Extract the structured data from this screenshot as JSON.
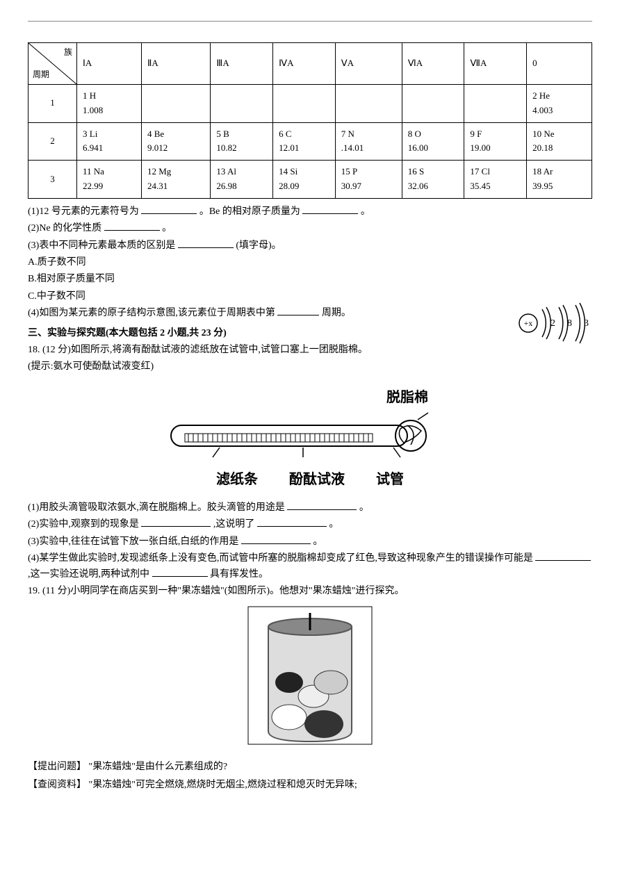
{
  "periodic": {
    "corner_top": "族",
    "corner_bottom": "周期",
    "groups": [
      "ⅠA",
      "ⅡA",
      "ⅢA",
      "ⅣA",
      "ⅤA",
      "ⅥA",
      "ⅦA",
      "0"
    ],
    "rows": [
      {
        "period": "1",
        "cells": [
          {
            "num": "1",
            "sym": "H",
            "mass": "1.008"
          },
          null,
          null,
          null,
          null,
          null,
          null,
          {
            "num": "2",
            "sym": "He",
            "mass": "4.003"
          }
        ]
      },
      {
        "period": "2",
        "cells": [
          {
            "num": "3",
            "sym": "Li",
            "mass": "6.941"
          },
          {
            "num": "4",
            "sym": "Be",
            "mass": "9.012"
          },
          {
            "num": "5",
            "sym": "B",
            "mass": "10.82"
          },
          {
            "num": "6",
            "sym": "C",
            "mass": "12.01"
          },
          {
            "num": "7",
            "sym": "N",
            "mass": ".14.01"
          },
          {
            "num": "8",
            "sym": "O",
            "mass": "16.00"
          },
          {
            "num": "9",
            "sym": "F",
            "mass": "19.00"
          },
          {
            "num": "10",
            "sym": "Ne",
            "mass": "20.18"
          }
        ]
      },
      {
        "period": "3",
        "cells": [
          {
            "num": "11",
            "sym": "Na",
            "mass": "22.99"
          },
          {
            "num": "12",
            "sym": "Mg",
            "mass": "24.31"
          },
          {
            "num": "13",
            "sym": "Al",
            "mass": "26.98"
          },
          {
            "num": "14",
            "sym": "Si",
            "mass": "28.09"
          },
          {
            "num": "15",
            "sym": "P",
            "mass": "30.97"
          },
          {
            "num": "16",
            "sym": "S",
            "mass": "32.06"
          },
          {
            "num": "17",
            "sym": "Cl",
            "mass": "35.45"
          },
          {
            "num": "18",
            "sym": "Ar",
            "mass": "39.95"
          }
        ]
      }
    ]
  },
  "q1": {
    "pre": "(1)12 号元素的元素符号为",
    "mid": "。Be 的相对原子质量为",
    "end": "。"
  },
  "q2": {
    "pre": "(2)Ne 的化学性质",
    "end": "。"
  },
  "q3": {
    "pre": "(3)表中不同种元素最本质的区别是",
    "post": "(填字母)。",
    "optA": "A.质子数不同",
    "optB": "B.相对原子质量不同",
    "optC": "C.中子数不同"
  },
  "q4": {
    "pre": "(4)如图为某元素的原子结构示意图,该元素位于周期表中第",
    "end": "周期。"
  },
  "section3": "三、实验与探究题(本大题包括 2 小题,共 23 分)",
  "q18": {
    "intro": "18. (12 分)如图所示,将滴有酚酞试液的滤纸放在试管中,试管口塞上一团脱脂棉。",
    "hint": "(提示:氨水可使酚酞试液变红)",
    "fig_top": "脱脂棉",
    "fig_b1": "滤纸条",
    "fig_b2": "酚酞试液",
    "fig_b3": "试管",
    "p1_pre": "(1)用胶头滴管吸取浓氨水,滴在脱脂棉上。胶头滴管的用途是",
    "p1_end": "。",
    "p2_pre": "(2)实验中,观察到的现象是",
    "p2_mid": ",这说明了",
    "p2_end": "。",
    "p3_pre": "(3)实验中,往往在试管下放一张白纸,白纸的作用是",
    "p3_end": "。",
    "p4_pre": "(4)某学生做此实验时,发现滤纸条上没有变色,而试管中所塞的脱脂棉却变成了红色,导致这种现象产生的错误操作可能是",
    "p4_mid": ",这一实验还说明,两种试剂中",
    "p4_end": "具有挥发性。"
  },
  "q19": {
    "intro": "19. (11 分)小明同学在商店买到一种\"果冻蜡烛\"(如图所示)。他想对\"果冻蜡烛\"进行探究。",
    "ask_label": "【提出问题】",
    "ask": "\"果冻蜡烛\"是由什么元素组成的?",
    "info_label": "【查阅资料】",
    "info": "\"果冻蜡烛\"可完全燃烧,燃烧时无烟尘,燃烧过程和熄灭时无异味;"
  },
  "atom": {
    "center": "+x",
    "shells": [
      "2",
      "8",
      "3"
    ]
  }
}
